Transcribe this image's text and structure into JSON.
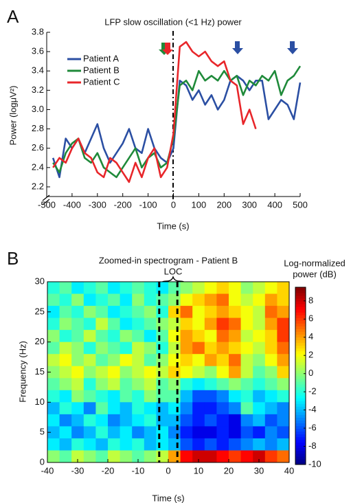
{
  "chart_data": [
    {
      "type": "line",
      "panel": "A",
      "title": "LFP slow oscillation (<1 Hz) power",
      "xlabel": "Time (s)",
      "ylabel": "Power (logμV²)",
      "x": [
        -475,
        -450,
        -425,
        -400,
        -375,
        -350,
        -325,
        -300,
        -275,
        -250,
        -225,
        -200,
        -175,
        -150,
        -125,
        -100,
        -75,
        -50,
        -25,
        0,
        25,
        50,
        75,
        100,
        125,
        150,
        175,
        200,
        225,
        250,
        275,
        300,
        325,
        350,
        375,
        400,
        425,
        450,
        475,
        500
      ],
      "xlim": [
        -500,
        500
      ],
      "xticks": [
        -500,
        -400,
        -300,
        -200,
        -100,
        0,
        100,
        200,
        300,
        400,
        500
      ],
      "ylim": [
        2.1,
        3.8
      ],
      "yticks": [
        2.2,
        2.4,
        2.6,
        2.8,
        {
          "value": 3,
          "label": "3.0"
        },
        3.2,
        3.4,
        3.6,
        3.8
      ],
      "series": [
        {
          "name": "Patient A",
          "color": "#2b4fa3",
          "values": [
            2.5,
            2.3,
            2.7,
            2.6,
            2.7,
            2.55,
            2.7,
            2.85,
            2.6,
            2.45,
            2.55,
            2.65,
            2.8,
            2.6,
            2.55,
            2.8,
            2.6,
            2.5,
            2.45,
            2.6,
            3.3,
            3.25,
            3.1,
            3.2,
            3.05,
            3.15,
            3.0,
            3.1,
            3.3,
            3.35,
            3.3,
            3.2,
            3.3,
            3.3,
            2.9,
            3.0,
            3.1,
            3.05,
            2.9,
            3.28
          ]
        },
        {
          "name": "Patient B",
          "color": "#1f8a3a",
          "values": [
            2.45,
            2.35,
            2.55,
            2.65,
            2.7,
            2.5,
            2.45,
            2.55,
            2.4,
            2.35,
            2.3,
            2.4,
            2.5,
            2.6,
            2.4,
            2.5,
            2.55,
            2.4,
            2.45,
            2.7,
            3.25,
            3.3,
            3.2,
            3.4,
            3.3,
            3.35,
            3.3,
            3.4,
            3.3,
            3.35,
            3.15,
            3.3,
            3.25,
            3.35,
            3.3,
            3.4,
            3.15,
            3.3,
            3.35,
            3.45
          ]
        },
        {
          "name": "Patient C",
          "color": "#e8262a",
          "values": [
            2.4,
            2.5,
            2.45,
            2.6,
            2.7,
            2.55,
            2.5,
            2.35,
            2.3,
            2.5,
            2.45,
            2.35,
            2.25,
            2.45,
            2.3,
            2.5,
            2.6,
            2.3,
            2.4,
            2.75,
            3.65,
            3.7,
            3.6,
            3.55,
            3.6,
            3.5,
            3.45,
            3.5,
            3.3,
            3.25,
            2.85,
            3.0,
            2.8,
            null,
            null,
            null,
            null,
            null,
            null,
            null
          ]
        }
      ]
    },
    {
      "type": "heatmap",
      "panel": "B",
      "title": "Zoomed-in spectrogram - Patient B",
      "xlabel": "Time (s)",
      "ylabel": "Frequency (Hz)",
      "annotation": "LOC",
      "colorbar_label": [
        "Log-normalized",
        "power (dB)"
      ],
      "xlim": [
        -40,
        40
      ],
      "xticks": [
        -40,
        -30,
        -20,
        -10,
        0,
        10,
        20,
        30,
        40
      ],
      "ylim": [
        0,
        30
      ],
      "yticks": [
        0,
        5,
        10,
        15,
        20,
        25,
        30
      ],
      "clim": [
        -10,
        9.5
      ],
      "cticks": [
        -10,
        -8,
        -6,
        -4,
        -2,
        0,
        2,
        4,
        6,
        8
      ],
      "z": [
        [
          -2,
          -1,
          -3,
          -2,
          -1,
          -3,
          -2,
          -1,
          -2,
          -3,
          -1,
          0,
          1,
          2,
          3,
          2,
          0,
          1,
          2,
          3
        ],
        [
          -1,
          -2,
          0,
          -3,
          -2,
          -1,
          -3,
          0,
          -2,
          -1,
          0,
          2,
          3,
          4,
          5,
          2,
          1,
          2,
          4,
          3
        ],
        [
          -3,
          -1,
          -2,
          0,
          -1,
          -3,
          -2,
          -1,
          0,
          -2,
          3,
          5,
          2,
          3,
          4,
          3,
          2,
          1,
          5,
          4
        ],
        [
          -2,
          0,
          -1,
          -2,
          1,
          -1,
          -3,
          -2,
          -1,
          0,
          1,
          3,
          2,
          4,
          6,
          5,
          2,
          1,
          4,
          6
        ],
        [
          0,
          -2,
          -1,
          1,
          -1,
          -2,
          0,
          -1,
          -3,
          -1,
          2,
          4,
          3,
          2,
          5,
          4,
          1,
          2,
          3,
          6
        ],
        [
          -1,
          1,
          0,
          -2,
          0,
          -1,
          -2,
          1,
          0,
          -2,
          1,
          4,
          5,
          3,
          4,
          3,
          2,
          1,
          3,
          5
        ],
        [
          1,
          2,
          0,
          1,
          -1,
          0,
          2,
          1,
          -1,
          0,
          2,
          3,
          2,
          4,
          3,
          5,
          1,
          0,
          2,
          4
        ],
        [
          0,
          1,
          2,
          0,
          1,
          2,
          0,
          1,
          2,
          1,
          3,
          2,
          1,
          0,
          2,
          4,
          1,
          -1,
          0,
          3
        ],
        [
          -1,
          0,
          1,
          -2,
          0,
          1,
          -1,
          0,
          1,
          -1,
          0,
          -2,
          -3,
          -2,
          -1,
          0,
          -1,
          -2,
          -1,
          0
        ],
        [
          -2,
          -3,
          0,
          -1,
          -2,
          -3,
          -1,
          -2,
          0,
          -1,
          -1,
          -4,
          -6,
          -6,
          -5,
          -3,
          -2,
          -4,
          -3,
          -2
        ],
        [
          -4,
          -2,
          -3,
          -5,
          -1,
          -3,
          -4,
          -2,
          -3,
          -4,
          -3,
          -5,
          -7,
          -7,
          -6,
          -5,
          -1,
          -3,
          -4,
          -5
        ],
        [
          -3,
          -5,
          -4,
          -2,
          -3,
          -5,
          -4,
          -3,
          -2,
          -4,
          -4,
          -6,
          -7,
          -6,
          -7,
          -8,
          -5,
          -4,
          -6,
          -5
        ],
        [
          -4,
          -3,
          -5,
          -4,
          -2,
          -4,
          -3,
          -5,
          -4,
          -3,
          -5,
          -7,
          -8,
          -8,
          -7,
          -8,
          -6,
          -7,
          -5,
          -6
        ],
        [
          -3,
          -4,
          -2,
          -3,
          -4,
          -2,
          -3,
          -2,
          -4,
          -3,
          -4,
          -6,
          -7,
          -6,
          -7,
          -6,
          -5,
          -4,
          -5,
          -4
        ],
        [
          0,
          -1,
          1,
          0,
          -1,
          1,
          0,
          -1,
          0,
          1,
          4,
          7,
          8,
          8,
          7,
          6,
          7,
          8,
          6,
          5
        ]
      ]
    }
  ]
}
